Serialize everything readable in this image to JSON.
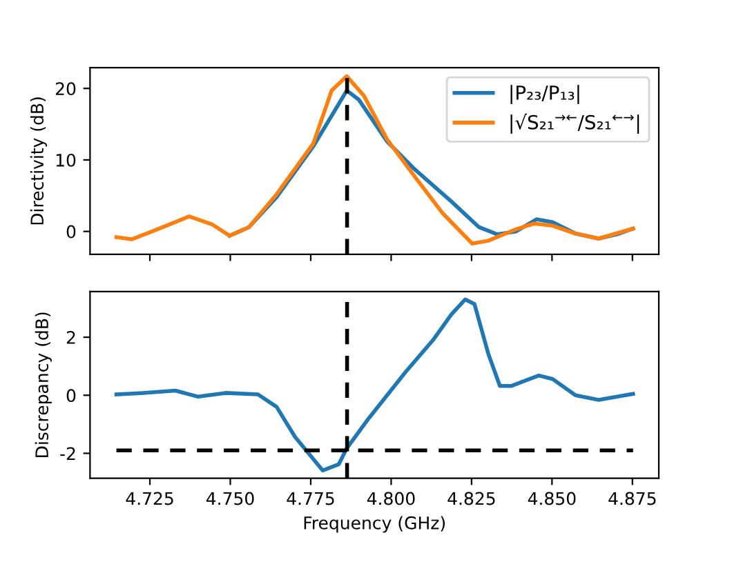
{
  "chart_data": [
    {
      "type": "line",
      "ylabel": "Directivity (dB)",
      "xlim": [
        4.7064,
        4.8832
      ],
      "ylim": [
        -3.2,
        22.9
      ],
      "yticks": [
        0,
        10,
        20
      ],
      "xticks": [
        {
          "value": 4.725,
          "label": null
        },
        {
          "value": 4.75,
          "label": null
        },
        {
          "value": 4.775,
          "label": null
        },
        {
          "value": 4.8,
          "label": null
        },
        {
          "value": 4.825,
          "label": null
        },
        {
          "value": 4.85,
          "label": null
        },
        {
          "value": 4.875,
          "label": null
        }
      ],
      "tick_labels": "y",
      "legend": "top right",
      "grid": false,
      "ref_lines": [
        {
          "axis": "x",
          "value": 4.7863,
          "color": "#000000",
          "line_style": "dashed"
        }
      ],
      "series": [
        {
          "name": "|P₂₃/P₁₃|",
          "color": "#1f77b4",
          "x": [
            4.7498,
            4.7558,
            4.7644,
            4.7758,
            4.7862,
            4.79,
            4.7987,
            4.8073,
            4.8187,
            4.8273,
            4.833,
            4.8388,
            4.8452,
            4.8502,
            4.8573,
            4.8645,
            4.8702,
            4.8752
          ],
          "values": [
            -0.6,
            0.6,
            4.8,
            11.9,
            19.7,
            18.4,
            12.6,
            8.7,
            4.2,
            0.6,
            -0.4,
            0,
            1.7,
            1.3,
            -0.3,
            -1.0,
            -0.4,
            0.4
          ]
        },
        {
          "name": "|√S₂₁$^{→←}$/S₂₁$^{←→}$|",
          "color": "#ff7f0e",
          "x": [
            4.7146,
            4.7193,
            4.7257,
            4.7372,
            4.7443,
            4.7498,
            4.7558,
            4.7644,
            4.7758,
            4.7815,
            4.7862,
            4.7915,
            4.7987,
            4.8073,
            4.8159,
            4.8252,
            4.8302,
            4.8388,
            4.8445,
            4.8502,
            4.8573,
            4.8645,
            4.8752
          ],
          "values": [
            -0.8,
            -1.1,
            0,
            2.1,
            1.0,
            -0.6,
            0.6,
            5.2,
            12.3,
            19.7,
            21.7,
            19.0,
            12.9,
            7.7,
            2.6,
            -1.7,
            -1.3,
            0.3,
            1.1,
            0.8,
            -0.3,
            -1.0,
            0.4
          ]
        }
      ]
    },
    {
      "type": "line",
      "xlabel": "Frequency (GHz)",
      "ylabel": "Discrepancy (dB)",
      "xlim": [
        4.7064,
        4.8832
      ],
      "ylim": [
        -2.86,
        3.57
      ],
      "yticks": [
        -2,
        0,
        2
      ],
      "xticks": [
        {
          "value": 4.725,
          "label": "4.725"
        },
        {
          "value": 4.75,
          "label": "4.750"
        },
        {
          "value": 4.775,
          "label": "4.775"
        },
        {
          "value": 4.8,
          "label": "4.800"
        },
        {
          "value": 4.825,
          "label": "4.825"
        },
        {
          "value": 4.85,
          "label": "4.850"
        },
        {
          "value": 4.875,
          "label": "4.875"
        }
      ],
      "grid": false,
      "ref_lines": [
        {
          "axis": "x",
          "value": 4.7863,
          "color": "#000000",
          "line_style": "dashed"
        },
        {
          "axis": "y",
          "value": -1.9,
          "color": "#000000",
          "line_style": "dashed"
        }
      ],
      "series": [
        {
          "color": "#1f77b4",
          "x": [
            4.7146,
            4.7229,
            4.7329,
            4.74,
            4.7486,
            4.7586,
            4.7644,
            4.7701,
            4.7787,
            4.7837,
            4.7862,
            4.793,
            4.8044,
            4.813,
            4.8187,
            4.823,
            4.8259,
            4.8302,
            4.8338,
            4.8373,
            4.8459,
            4.8502,
            4.8573,
            4.8645,
            4.8752
          ],
          "values": [
            0.03,
            0.08,
            0.16,
            -0.05,
            0.08,
            0.03,
            -0.4,
            -1.43,
            -2.59,
            -2.38,
            -1.83,
            -0.8,
            0.79,
            1.9,
            2.78,
            3.3,
            3.14,
            1.43,
            0.32,
            0.32,
            0.68,
            0.56,
            0,
            -0.16,
            0.05
          ]
        }
      ]
    }
  ]
}
